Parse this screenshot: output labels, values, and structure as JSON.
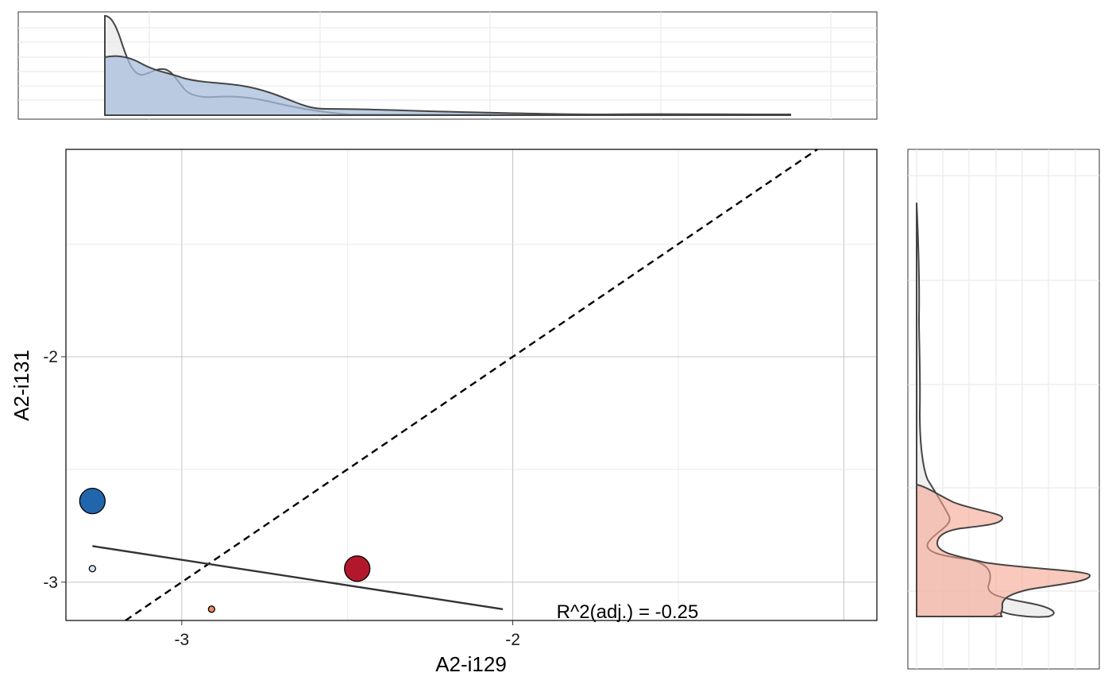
{
  "chart_data": {
    "type": "scatter",
    "xlabel": "A2-i129",
    "ylabel": "A2-i131",
    "xlim": [
      -3.35,
      -0.9
    ],
    "ylim": [
      -3.17,
      -1.08
    ],
    "x_ticks": [
      -3,
      -2
    ],
    "y_ticks": [
      -2,
      -3
    ],
    "grid": true,
    "annotation": "R^2(adj.) = -0.25",
    "points": [
      {
        "x": -3.27,
        "y": -2.64,
        "size": "large",
        "color": "#2166ac"
      },
      {
        "x": -3.27,
        "y": -2.94,
        "size": "small",
        "color": "#d1e5f0"
      },
      {
        "x": -2.91,
        "y": -3.12,
        "size": "small",
        "color": "#ef8a62"
      },
      {
        "x": -2.47,
        "y": -2.94,
        "size": "large",
        "color": "#b2182b"
      }
    ],
    "regression_line": {
      "x": [
        -3.27,
        -2.03
      ],
      "y": [
        -2.84,
        -3.12
      ],
      "color": "#333333"
    },
    "identity_line": {
      "style": "dashed",
      "color": "#000000"
    },
    "marginal_x": {
      "position": "top",
      "fill_color": "#b3c6dd",
      "curves": [
        "grey-filled",
        "blue-filled"
      ]
    },
    "marginal_y": {
      "position": "right",
      "fill_color": "#f4c3b8",
      "curves": [
        "grey-filled",
        "red-filled"
      ]
    }
  }
}
